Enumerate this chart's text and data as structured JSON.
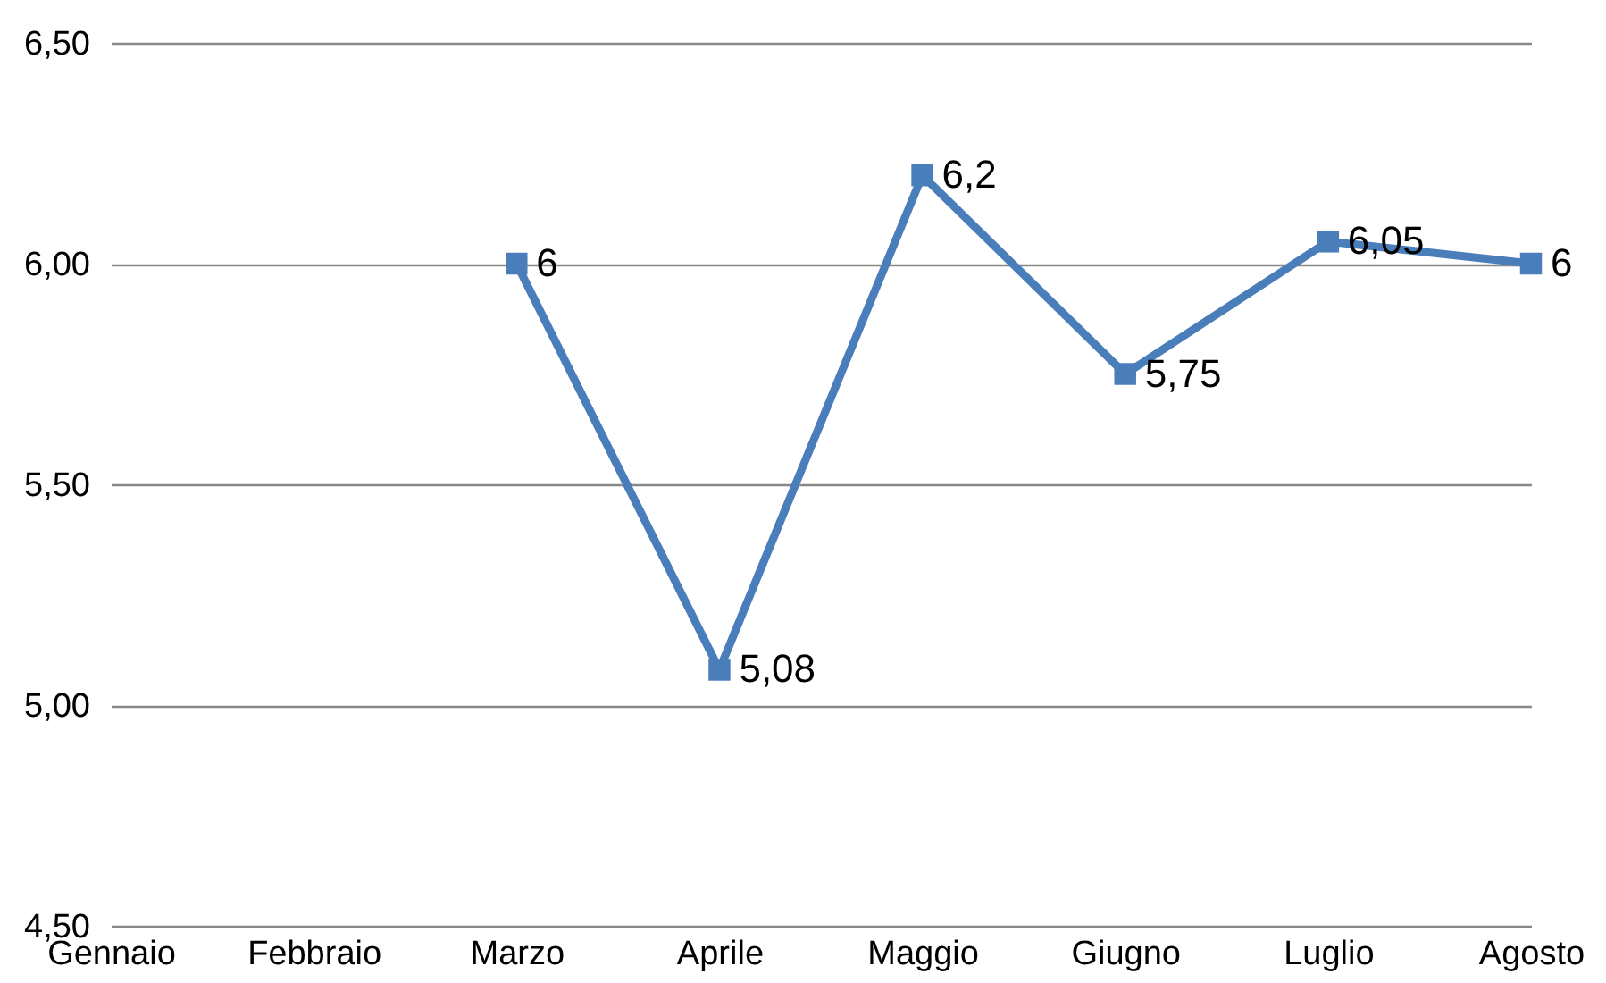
{
  "chart_data": {
    "type": "line",
    "categories": [
      "Gennaio",
      "Febbraio",
      "Marzo",
      "Aprile",
      "Maggio",
      "Giugno",
      "Luglio",
      "Agosto"
    ],
    "series": [
      {
        "color": "#4a7ebb",
        "values": [
          null,
          null,
          6,
          5.08,
          6.2,
          5.75,
          6.05,
          6
        ],
        "value_labels": [
          null,
          null,
          "6",
          "5,08",
          "6,2",
          "5,75",
          "6,05",
          "6"
        ]
      }
    ],
    "ylim": [
      4.5,
      6.5
    ],
    "yticks": [
      {
        "value": 4.5,
        "label": "4,50"
      },
      {
        "value": 5,
        "label": "5,00"
      },
      {
        "value": 5.5,
        "label": "5,50"
      },
      {
        "value": 6,
        "label": "6,00"
      },
      {
        "value": 6.5,
        "label": "6,50"
      }
    ],
    "grid": "y",
    "marker": "square",
    "line_style": "solid",
    "legend": false
  }
}
